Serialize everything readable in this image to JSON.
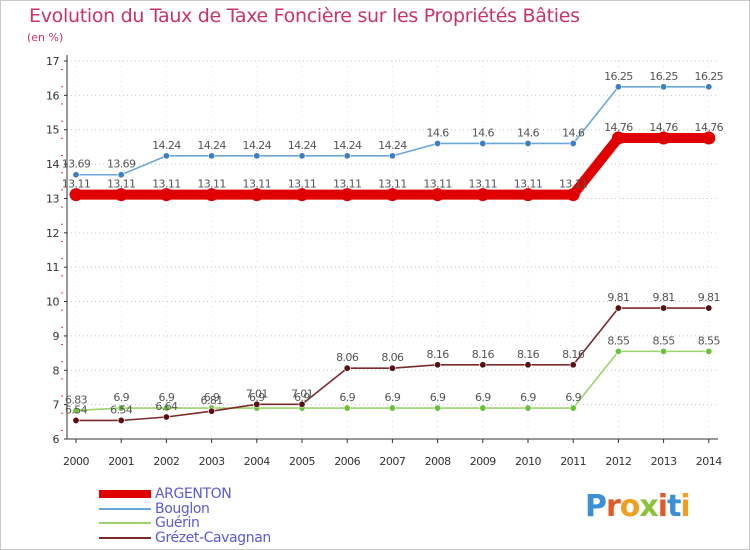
{
  "header": {
    "title": "Evolution du Taux de Taxe Foncière sur les Propriétés Bâties",
    "subtitle": "(en %)"
  },
  "brand": {
    "text": "Proxiti",
    "letter_colors": [
      "#3a8fd6",
      "#e05a2a",
      "#f0a020",
      "#8ac23a",
      "#e05a2a",
      "#3a8fd6",
      "#f0a020"
    ]
  },
  "chart_data": {
    "type": "line",
    "title": "Evolution du Taux de Taxe Foncière sur les Propriétés Bâties",
    "ylabel": "(en %)",
    "xlabel": "",
    "x": [
      "2000",
      "2001",
      "2002",
      "2003",
      "2004",
      "2005",
      "2006",
      "2007",
      "2008",
      "2009",
      "2010",
      "2011",
      "2012",
      "2013",
      "2014"
    ],
    "ylim": [
      6,
      17
    ],
    "yticks": [
      6,
      7,
      8,
      9,
      10,
      11,
      12,
      13,
      14,
      15,
      16,
      17
    ],
    "grid": "horizontal dotted",
    "legend_position": "bottom-left",
    "series": [
      {
        "name": "ARGENTON",
        "color": "#e00000",
        "emphasis": true,
        "values": [
          13.11,
          13.11,
          13.11,
          13.11,
          13.11,
          13.11,
          13.11,
          13.11,
          13.11,
          13.11,
          13.11,
          13.11,
          14.76,
          14.76,
          14.76
        ],
        "labels": [
          "13.11",
          "13.11",
          "13.11",
          "13.11",
          "13.11",
          "13.11",
          "13.11",
          "13.11",
          "13.11",
          "13.11",
          "13.11",
          "13.11",
          "14.76",
          "14.76",
          "14.76"
        ]
      },
      {
        "name": "Bouglon",
        "color": "#6aa6d8",
        "marker": "#3d7fc4",
        "values": [
          13.69,
          13.69,
          14.24,
          14.24,
          14.24,
          14.24,
          14.24,
          14.24,
          14.6,
          14.6,
          14.6,
          14.6,
          16.25,
          16.25,
          16.25
        ],
        "labels": [
          "13.69",
          "13.69",
          "14.24",
          "14.24",
          "14.24",
          "14.24",
          "14.24",
          "14.24",
          "14.6",
          "14.6",
          "14.6",
          "14.6",
          "16.25",
          "16.25",
          "16.25"
        ]
      },
      {
        "name": "Guérin",
        "color": "#9ad46a",
        "marker": "#6cc13a",
        "values": [
          6.83,
          6.9,
          6.9,
          6.9,
          6.9,
          6.9,
          6.9,
          6.9,
          6.9,
          6.9,
          6.9,
          6.9,
          8.55,
          8.55,
          8.55
        ],
        "labels": [
          "6.83",
          "6.9",
          "6.9",
          "6.9",
          "6.9",
          "6.9",
          "6.9",
          "6.9",
          "6.9",
          "6.9",
          "6.9",
          "6.9",
          "8.55",
          "8.55",
          "8.55"
        ]
      },
      {
        "name": "Grézet-Cavagnan",
        "color": "#7a2a2a",
        "marker": "#5a1010",
        "values": [
          6.54,
          6.54,
          6.64,
          6.81,
          7.01,
          7.01,
          8.06,
          8.06,
          8.16,
          8.16,
          8.16,
          8.16,
          9.81,
          9.81,
          9.81
        ],
        "labels": [
          "6.54",
          "6.54",
          "6.64",
          "6.81",
          "7.01",
          "7.01",
          "8.06",
          "8.06",
          "8.16",
          "8.16",
          "8.16",
          "8.16",
          "9.81",
          "9.81",
          "9.81"
        ]
      }
    ]
  }
}
